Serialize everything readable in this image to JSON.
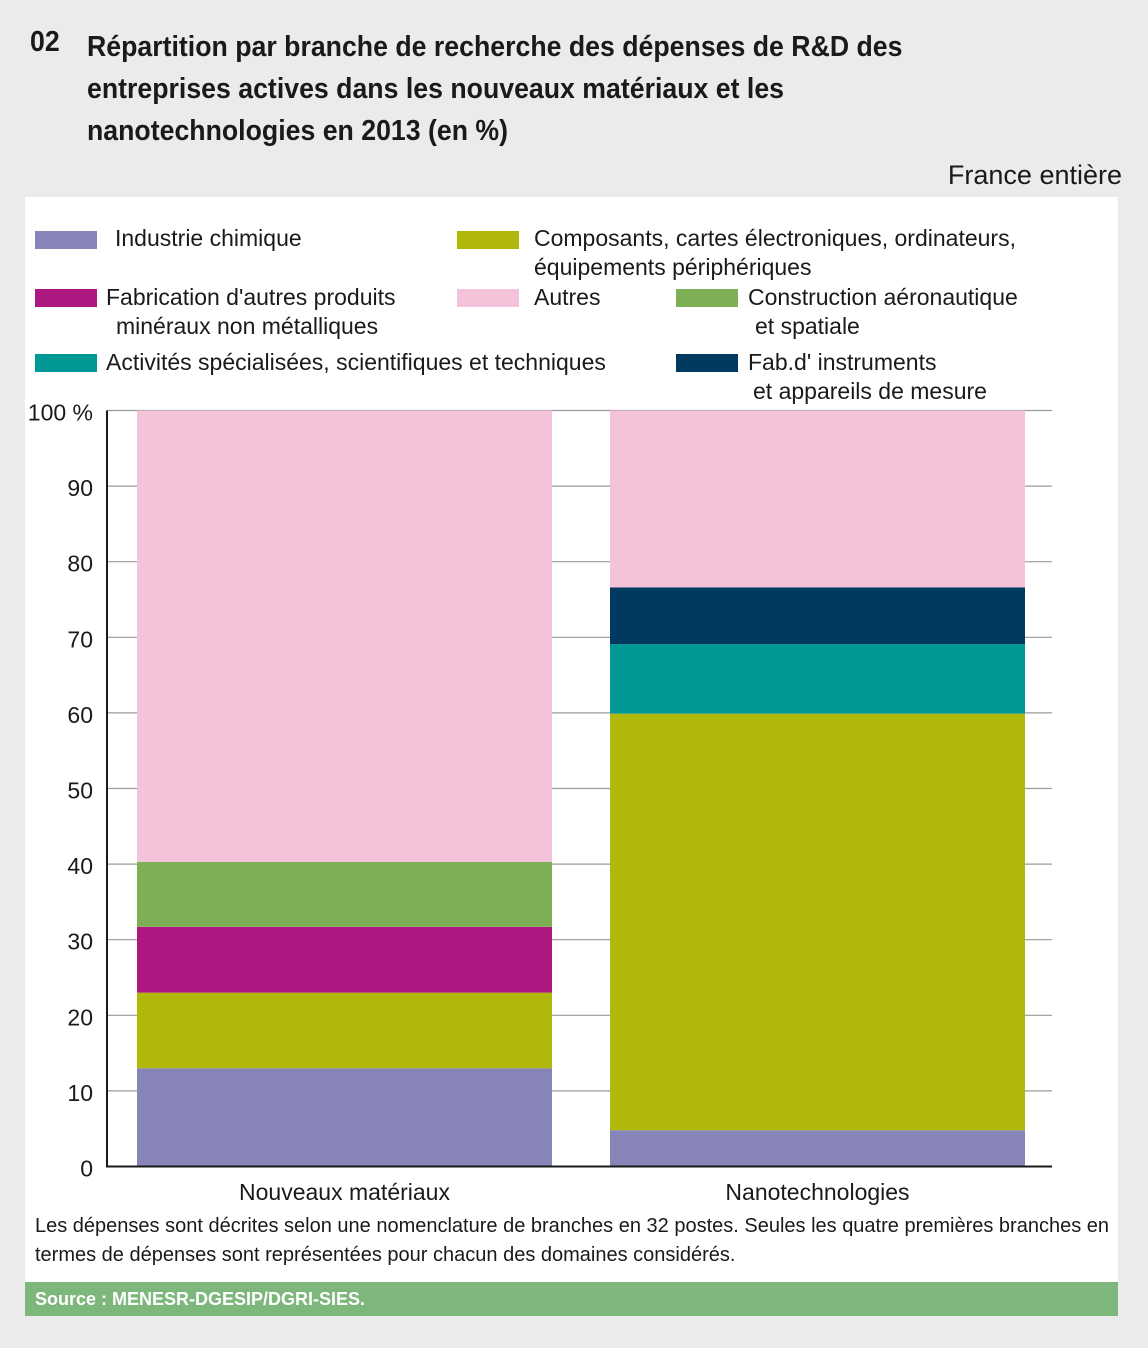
{
  "header": {
    "number": "02",
    "scope": "France entière"
  },
  "chart_data": {
    "type": "bar",
    "stacked": true,
    "title": "Répartition par branche de recherche des dépenses de R&D des entreprises actives dans les nouveaux matériaux et les nanotechnologies en 2013 (en %)",
    "categories": [
      "Nouveaux matériaux",
      "Nanotechnologies"
    ],
    "ylim": [
      0,
      100
    ],
    "yticks": [
      "0",
      "10",
      "20",
      "30",
      "40",
      "50",
      "60",
      "70",
      "80",
      "90",
      "100 %"
    ],
    "grid": true,
    "legend_position": "top",
    "series": [
      {
        "name": "Industrie chimique",
        "color": "#8784b8",
        "values": [
          13.0,
          4.8
        ]
      },
      {
        "name": "Composants, cartes électroniques, ordinateurs, équipements périphériques",
        "color": "#b1b80c",
        "values": [
          10.0,
          55.1
        ]
      },
      {
        "name": "Fabrication d'autres produits minéraux non métalliques",
        "color": "#ac1880",
        "values": [
          8.7,
          0
        ]
      },
      {
        "name": "Construction aéronautique et spatiale",
        "color": "#7db055",
        "values": [
          8.6,
          0
        ]
      },
      {
        "name": "Activités spécialisées, scientifiques et techniques",
        "color": "#009894",
        "values": [
          0,
          9.2
        ]
      },
      {
        "name": "Fab.d' instruments et appareils de mesure",
        "color": "#003a5e",
        "values": [
          0,
          7.5
        ]
      },
      {
        "name": "Autres",
        "color": "#f4c3da",
        "values": [
          59.7,
          23.4
        ]
      }
    ]
  },
  "legend": {
    "chimie": "Industrie chimique",
    "composants_1": "Composants, cartes électroniques, ordinateurs,",
    "composants_2": "équipements périphériques",
    "mineraux_1": "Fabrication d'autres produits",
    "mineraux_2": "minéraux non métalliques",
    "autres": "Autres",
    "aero_1": "Construction aéronautique",
    "aero_2": "et spatiale",
    "activites": "Activités spécialisées, scientifiques et techniques",
    "instruments_1": "Fab.d' instruments",
    "instruments_2": "et appareils de mesure"
  },
  "note": "Les dépenses sont décrites selon une nomenclature de branches en 32 postes. Seules les quatre premières branches en termes de dépenses sont représentées pour chacun des domaines considérés.",
  "source": "Source : MENESR-DGESIP/DGRI-SIES."
}
